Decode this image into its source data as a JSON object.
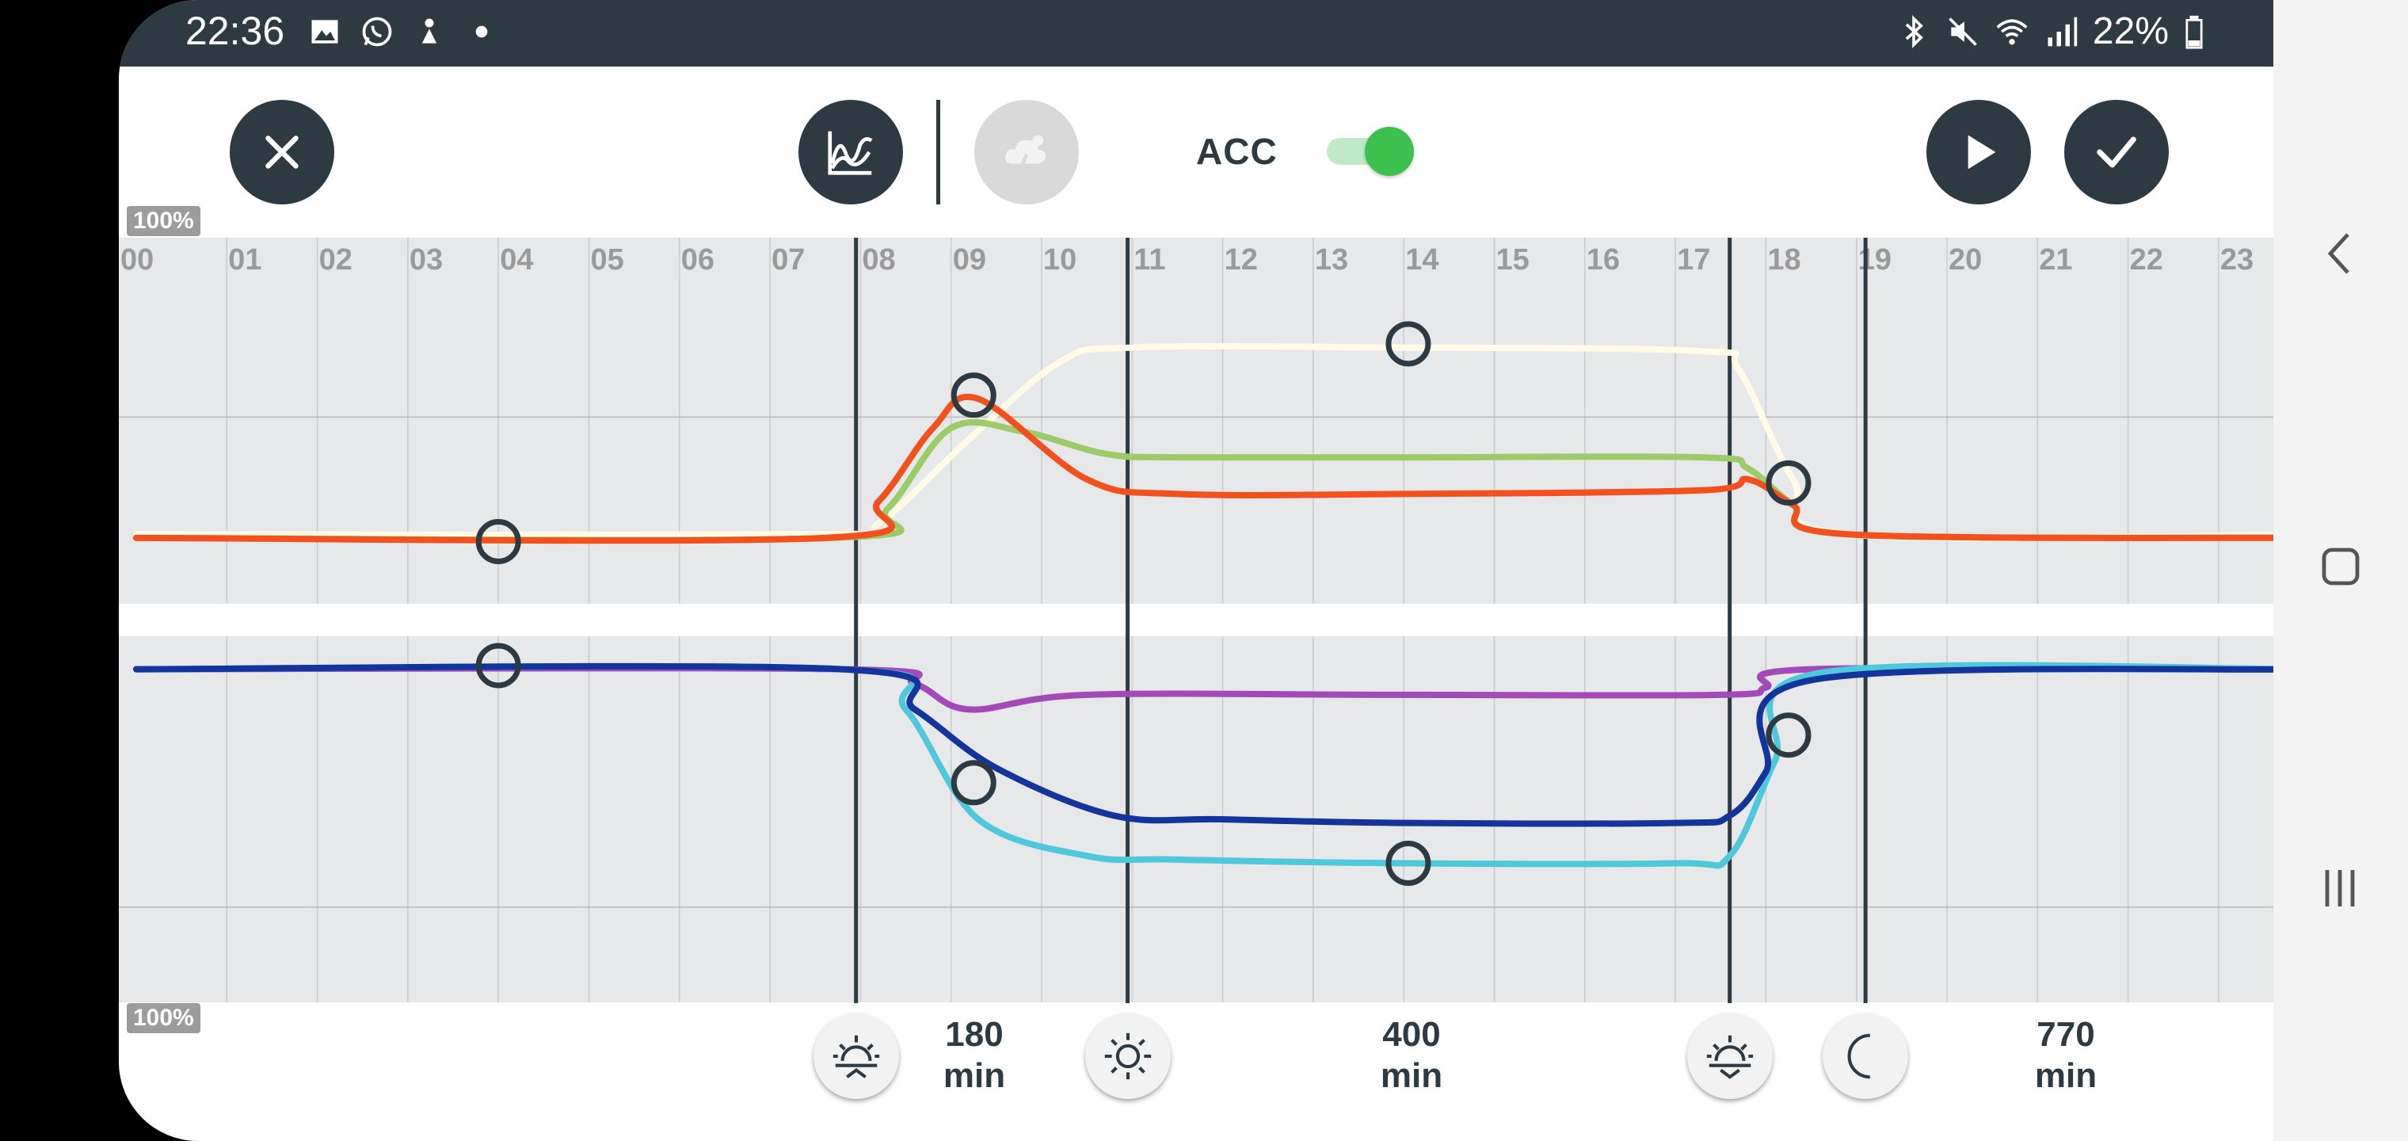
{
  "status_bar": {
    "time": "22:36",
    "battery": "22%",
    "left_icons": [
      "gallery-icon",
      "whatsapp-icon",
      "app-icon",
      "dot-icon"
    ],
    "right_icons": [
      "bluetooth-icon",
      "mute-icon",
      "wifi-icon",
      "signal-icon",
      "battery-icon"
    ]
  },
  "toolbar": {
    "close_icon": "close-icon",
    "chart_icon": "chart-icon",
    "weather_icon": "storm-cloud-icon",
    "acc_label": "ACC",
    "acc_enabled": true,
    "play_icon": "play-icon",
    "confirm_icon": "check-icon"
  },
  "chart_labels": {
    "top_percent": "100%",
    "bottom_percent": "100%"
  },
  "chart_data": {
    "type": "line",
    "x_ticks": [
      "00",
      "01",
      "02",
      "03",
      "04",
      "05",
      "06",
      "07",
      "08",
      "09",
      "10",
      "11",
      "12",
      "13",
      "14",
      "15",
      "16",
      "17",
      "18",
      "19",
      "20",
      "21",
      "22",
      "23"
    ],
    "xlim": [
      0,
      24
    ],
    "phase_markers_hour": [
      7.95,
      10.95,
      17.6,
      19.1
    ],
    "upper_panel": {
      "ylim": [
        0,
        100
      ],
      "series": [
        {
          "color": "#fffbe6",
          "points": [
            [
              0,
              19
            ],
            [
              7.6,
              19
            ],
            [
              8.2,
              22
            ],
            [
              9.2,
              45
            ],
            [
              10.2,
              66
            ],
            [
              11,
              70
            ],
            [
              14,
              70
            ],
            [
              17.3,
              69
            ],
            [
              17.7,
              64
            ],
            [
              18.3,
              34
            ],
            [
              18.9,
              19
            ],
            [
              24,
              19
            ]
          ]
        },
        {
          "color": "#9ccb6a",
          "points": [
            [
              0,
              18
            ],
            [
              7.7,
              18
            ],
            [
              8.3,
              26
            ],
            [
              9,
              48
            ],
            [
              9.8,
              47
            ],
            [
              10.7,
              41
            ],
            [
              11.5,
              40
            ],
            [
              14,
              40
            ],
            [
              17.3,
              40
            ],
            [
              17.8,
              37
            ],
            [
              18.3,
              27
            ],
            [
              18.9,
              19
            ],
            [
              24,
              18
            ]
          ]
        },
        {
          "color": "#f2511e",
          "points": [
            [
              0,
              18
            ],
            [
              7.6,
              18
            ],
            [
              8.2,
              28
            ],
            [
              8.8,
              48
            ],
            [
              9.3,
              56
            ],
            [
              10.5,
              34
            ],
            [
              11.5,
              30
            ],
            [
              14,
              30
            ],
            [
              17.3,
              31
            ],
            [
              17.8,
              34
            ],
            [
              18.3,
              27
            ],
            [
              18.9,
              19
            ],
            [
              24,
              18
            ]
          ]
        }
      ],
      "handles": [
        [
          4,
          17
        ],
        [
          9.25,
          57
        ],
        [
          14.05,
          71
        ],
        [
          18.25,
          33
        ]
      ]
    },
    "lower_panel": {
      "ylim": [
        0,
        100
      ],
      "series": [
        {
          "color": "#a349b8",
          "points": [
            [
              0,
              91
            ],
            [
              7.8,
              91
            ],
            [
              8.6,
              87
            ],
            [
              9.2,
              80
            ],
            [
              10.5,
              84
            ],
            [
              14,
              84
            ],
            [
              17.5,
              84
            ],
            [
              18,
              86
            ],
            [
              18.5,
              91
            ],
            [
              24,
              91
            ]
          ]
        },
        {
          "color": "#50c8dc",
          "points": [
            [
              0,
              91
            ],
            [
              7.8,
              91
            ],
            [
              8.5,
              80
            ],
            [
              9.3,
              50
            ],
            [
              10.5,
              40
            ],
            [
              11.5,
              39
            ],
            [
              14,
              38
            ],
            [
              17,
              38
            ],
            [
              17.6,
              40
            ],
            [
              18.1,
              66
            ],
            [
              18.6,
              90
            ],
            [
              24,
              91
            ]
          ]
        },
        {
          "color": "#13349a",
          "points": [
            [
              0,
              91
            ],
            [
              7.8,
              91
            ],
            [
              8.6,
              80
            ],
            [
              9.5,
              64
            ],
            [
              10.8,
              51
            ],
            [
              12,
              50
            ],
            [
              14,
              49
            ],
            [
              17,
              49
            ],
            [
              17.6,
              51
            ],
            [
              18,
              63
            ],
            [
              18.5,
              88
            ],
            [
              24,
              91
            ]
          ]
        }
      ],
      "handles": [
        [
          4,
          92
        ],
        [
          9.25,
          60
        ],
        [
          14.05,
          38
        ],
        [
          18.25,
          73
        ]
      ]
    }
  },
  "phases": [
    {
      "name": "sunrise",
      "icon": "sunrise-icon",
      "duration_value": "180",
      "duration_unit": "min"
    },
    {
      "name": "day",
      "icon": "sun-icon",
      "duration_value": "400",
      "duration_unit": "min"
    },
    {
      "name": "sunset",
      "icon": "sunset-icon"
    },
    {
      "name": "night",
      "icon": "moon-icon",
      "duration_value": "770",
      "duration_unit": "min"
    }
  ],
  "nav": {
    "back_icon": "back-icon",
    "home_icon": "home-icon",
    "recents_icon": "recents-icon"
  }
}
